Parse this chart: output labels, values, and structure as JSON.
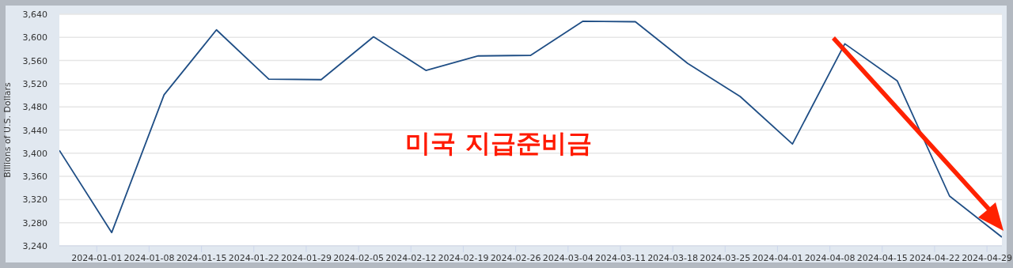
{
  "chart_data": {
    "type": "line",
    "ylabel": "Billions of U.S. Dollars",
    "x": [
      "2023-12-27",
      "2024-01-03",
      "2024-01-10",
      "2024-01-17",
      "2024-01-24",
      "2024-01-31",
      "2024-02-07",
      "2024-02-14",
      "2024-02-21",
      "2024-02-28",
      "2024-03-06",
      "2024-03-13",
      "2024-03-20",
      "2024-03-27",
      "2024-04-03",
      "2024-04-10",
      "2024-04-17",
      "2024-04-24",
      "2024-05-01"
    ],
    "series": [
      {
        "color": "#1f4e85",
        "values": [
          3405,
          3263,
          3501,
          3613,
          3528,
          3527,
          3601,
          3543,
          3568,
          3569,
          3628,
          3627,
          3555,
          3498,
          3416,
          3589,
          3525,
          3326,
          3255
        ]
      }
    ],
    "xlim": [
      "2023-12-27",
      "2024-05-01"
    ],
    "xticks": [
      "2024-01-01",
      "2024-01-08",
      "2024-01-15",
      "2024-01-22",
      "2024-01-29",
      "2024-02-05",
      "2024-02-12",
      "2024-02-19",
      "2024-02-26",
      "2024-03-04",
      "2024-03-11",
      "2024-03-18",
      "2024-03-25",
      "2024-04-01",
      "2024-04-08",
      "2024-04-15",
      "2024-04-22",
      "2024-04-29"
    ],
    "ylim": [
      3240,
      3640
    ],
    "yticks": [
      {
        "value": 3240,
        "label": "3,240"
      },
      {
        "value": 3280,
        "label": "3,280"
      },
      {
        "value": 3320,
        "label": "3,320"
      },
      {
        "value": 3360,
        "label": "3,360"
      },
      {
        "value": 3400,
        "label": "3,400"
      },
      {
        "value": 3440,
        "label": "3,440"
      },
      {
        "value": 3480,
        "label": "3,480"
      },
      {
        "value": 3520,
        "label": "3,520"
      },
      {
        "value": 3560,
        "label": "3,560"
      },
      {
        "value": 3600,
        "label": "3,600"
      },
      {
        "value": 3640,
        "label": "3,640"
      }
    ],
    "grid": "y",
    "marker": "none",
    "line_style": "solid",
    "annotations": [
      "미국 지급준비금"
    ]
  }
}
